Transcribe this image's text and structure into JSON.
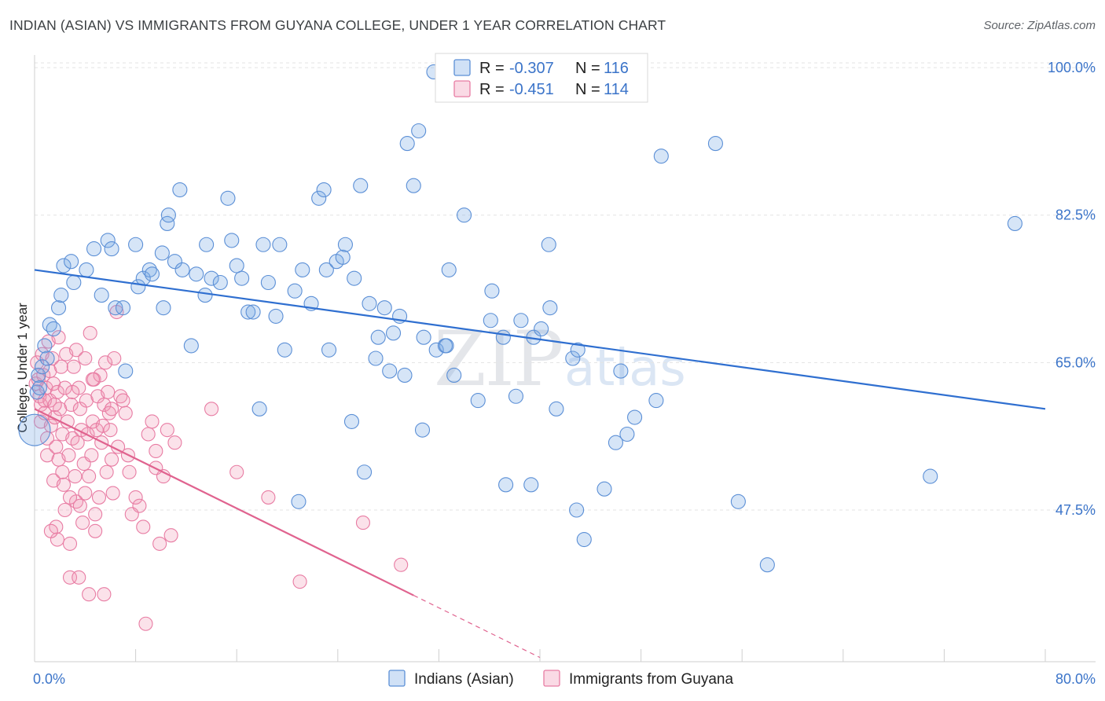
{
  "title": "INDIAN (ASIAN) VS IMMIGRANTS FROM GUYANA COLLEGE, UNDER 1 YEAR CORRELATION CHART",
  "source": "Source: ZipAtlas.com",
  "watermark": {
    "zip": "ZIP",
    "atlas": "atlas"
  },
  "colors": {
    "blue_fill": "rgba(120,168,228,0.30)",
    "blue_stroke": "#5b8fd6",
    "blue_line": "#2f6fd0",
    "pink_fill": "rgba(240,150,180,0.28)",
    "pink_stroke": "#e87ca3",
    "pink_line": "#e0638f",
    "axis_label": "#3b74c9",
    "grid": "#e3e3e3"
  },
  "legend": {
    "r_label": "R = ",
    "n_label": "N = ",
    "rows": [
      {
        "r": "-0.307",
        "n": "116",
        "series": "blue"
      },
      {
        "r": "-0.451",
        "n": "114",
        "series": "pink"
      }
    ]
  },
  "chart_data": {
    "type": "scatter",
    "title": "INDIAN (ASIAN) VS IMMIGRANTS FROM GUYANA COLLEGE, UNDER 1 YEAR CORRELATION CHART",
    "xlabel": "",
    "ylabel": "College, Under 1 year",
    "xlim": [
      0,
      80
    ],
    "ylim": [
      29.5,
      101.5
    ],
    "x_tick_labels": [
      "0.0%",
      "80.0%"
    ],
    "y_ticks": [
      47.5,
      65.0,
      82.5,
      100.0
    ],
    "y_tick_labels": [
      "47.5%",
      "65.0%",
      "82.5%",
      "100.0%"
    ],
    "grid": true,
    "series": [
      {
        "name": "Indians (Asian)",
        "color": "blue",
        "trend": {
          "x": [
            0,
            80
          ],
          "y": [
            76.0,
            59.5
          ],
          "dashed_from": null
        },
        "points": [
          [
            0.2,
            61.5
          ],
          [
            0.3,
            63.5
          ],
          [
            0.4,
            62.0
          ],
          [
            0.6,
            64.5
          ],
          [
            0.8,
            67.0
          ],
          [
            1.0,
            65.5
          ],
          [
            1.2,
            69.5
          ],
          [
            1.5,
            69.0
          ],
          [
            1.9,
            71.5
          ],
          [
            2.1,
            73.0
          ],
          [
            2.3,
            76.5
          ],
          [
            2.9,
            77.0
          ],
          [
            3.1,
            74.5
          ],
          [
            4.1,
            76.0
          ],
          [
            4.7,
            78.5
          ],
          [
            5.3,
            73.0
          ],
          [
            5.8,
            79.5
          ],
          [
            6.1,
            78.5
          ],
          [
            6.4,
            71.5
          ],
          [
            7.0,
            71.5
          ],
          [
            7.2,
            64.0
          ],
          [
            8.0,
            79.0
          ],
          [
            8.2,
            74.0
          ],
          [
            8.6,
            75.0
          ],
          [
            9.1,
            76.0
          ],
          [
            9.3,
            75.5
          ],
          [
            10.1,
            78.0
          ],
          [
            10.2,
            71.5
          ],
          [
            10.5,
            81.5
          ],
          [
            10.6,
            82.5
          ],
          [
            11.1,
            77.0
          ],
          [
            11.5,
            85.5
          ],
          [
            11.7,
            76.0
          ],
          [
            12.4,
            67.0
          ],
          [
            12.8,
            75.5
          ],
          [
            13.5,
            73.0
          ],
          [
            13.6,
            79.0
          ],
          [
            14.0,
            75.0
          ],
          [
            14.7,
            74.5
          ],
          [
            15.3,
            84.5
          ],
          [
            15.6,
            79.5
          ],
          [
            16.0,
            76.5
          ],
          [
            16.4,
            75.0
          ],
          [
            16.9,
            71.0
          ],
          [
            17.3,
            71.0
          ],
          [
            17.8,
            59.5
          ],
          [
            18.1,
            79.0
          ],
          [
            18.5,
            74.5
          ],
          [
            19.1,
            70.5
          ],
          [
            19.4,
            79.0
          ],
          [
            19.8,
            66.5
          ],
          [
            20.6,
            73.5
          ],
          [
            20.9,
            48.5
          ],
          [
            21.2,
            76.0
          ],
          [
            21.9,
            72.0
          ],
          [
            22.5,
            84.5
          ],
          [
            22.9,
            85.5
          ],
          [
            23.1,
            76.0
          ],
          [
            23.3,
            66.5
          ],
          [
            23.9,
            77.0
          ],
          [
            24.4,
            77.5
          ],
          [
            24.6,
            79.0
          ],
          [
            25.1,
            58.0
          ],
          [
            25.3,
            75.0
          ],
          [
            25.8,
            86.0
          ],
          [
            26.1,
            52.0
          ],
          [
            26.5,
            72.0
          ],
          [
            27.0,
            65.5
          ],
          [
            27.2,
            68.0
          ],
          [
            27.7,
            71.5
          ],
          [
            28.1,
            64.0
          ],
          [
            28.4,
            68.5
          ],
          [
            28.9,
            70.5
          ],
          [
            29.3,
            63.5
          ],
          [
            29.5,
            91.0
          ],
          [
            30.0,
            86.0
          ],
          [
            30.4,
            92.5
          ],
          [
            30.7,
            57.0
          ],
          [
            30.8,
            68.0
          ],
          [
            31.6,
            99.5
          ],
          [
            31.8,
            66.5
          ],
          [
            32.5,
            67.0
          ],
          [
            32.6,
            67.0
          ],
          [
            32.8,
            76.0
          ],
          [
            33.2,
            63.5
          ],
          [
            34.0,
            82.5
          ],
          [
            35.1,
            60.5
          ],
          [
            36.1,
            70.0
          ],
          [
            36.2,
            73.5
          ],
          [
            37.1,
            68.0
          ],
          [
            37.3,
            50.5
          ],
          [
            38.1,
            61.0
          ],
          [
            38.5,
            70.0
          ],
          [
            39.3,
            50.5
          ],
          [
            39.5,
            68.0
          ],
          [
            40.1,
            69.0
          ],
          [
            40.7,
            79.0
          ],
          [
            40.8,
            71.5
          ],
          [
            41.3,
            59.5
          ],
          [
            42.6,
            65.5
          ],
          [
            42.9,
            47.5
          ],
          [
            43.0,
            66.5
          ],
          [
            43.5,
            44.0
          ],
          [
            45.1,
            50.0
          ],
          [
            46.0,
            55.5
          ],
          [
            46.4,
            64.0
          ],
          [
            46.9,
            56.5
          ],
          [
            47.5,
            58.5
          ],
          [
            49.2,
            60.5
          ],
          [
            49.6,
            89.5
          ],
          [
            53.9,
            91.0
          ],
          [
            55.7,
            48.5
          ],
          [
            58.0,
            41.0
          ],
          [
            70.9,
            51.5
          ],
          [
            77.6,
            81.5
          ],
          [
            0.0,
            57.0
          ]
        ]
      },
      {
        "name": "Immigrants from Guyana",
        "color": "pink",
        "trend": {
          "x": [
            0,
            40
          ],
          "y": [
            59.5,
            30.0
          ],
          "dashed_from": 30
        },
        "points": [
          [
            0.1,
            62.5
          ],
          [
            0.2,
            65.0
          ],
          [
            0.3,
            63.0
          ],
          [
            0.4,
            61.0
          ],
          [
            0.5,
            60.0
          ],
          [
            0.5,
            58.0
          ],
          [
            0.6,
            66.0
          ],
          [
            0.7,
            63.5
          ],
          [
            0.8,
            59.0
          ],
          [
            0.9,
            62.0
          ],
          [
            1.0,
            56.0
          ],
          [
            1.0,
            54.0
          ],
          [
            1.1,
            67.5
          ],
          [
            1.2,
            64.0
          ],
          [
            1.2,
            60.5
          ],
          [
            1.3,
            57.5
          ],
          [
            1.4,
            65.5
          ],
          [
            1.5,
            62.5
          ],
          [
            1.5,
            51.0
          ],
          [
            1.6,
            58.5
          ],
          [
            1.7,
            55.0
          ],
          [
            1.7,
            45.5
          ],
          [
            1.8,
            61.5
          ],
          [
            1.9,
            68.0
          ],
          [
            1.9,
            53.5
          ],
          [
            2.0,
            59.5
          ],
          [
            2.1,
            64.5
          ],
          [
            2.2,
            56.5
          ],
          [
            2.3,
            50.5
          ],
          [
            2.4,
            62.0
          ],
          [
            2.4,
            47.5
          ],
          [
            2.5,
            66.0
          ],
          [
            2.6,
            58.0
          ],
          [
            2.7,
            54.0
          ],
          [
            2.8,
            39.5
          ],
          [
            2.8,
            43.5
          ],
          [
            2.9,
            60.0
          ],
          [
            3.0,
            56.0
          ],
          [
            3.1,
            64.5
          ],
          [
            3.2,
            51.5
          ],
          [
            3.3,
            66.5
          ],
          [
            3.3,
            48.5
          ],
          [
            3.4,
            55.5
          ],
          [
            3.5,
            62.0
          ],
          [
            3.6,
            59.5
          ],
          [
            3.7,
            57.0
          ],
          [
            3.8,
            46.0
          ],
          [
            3.9,
            53.0
          ],
          [
            4.0,
            65.5
          ],
          [
            4.0,
            49.5
          ],
          [
            4.1,
            60.5
          ],
          [
            4.2,
            56.5
          ],
          [
            4.3,
            51.5
          ],
          [
            4.4,
            68.5
          ],
          [
            4.5,
            54.0
          ],
          [
            4.6,
            58.0
          ],
          [
            4.7,
            63.0
          ],
          [
            4.8,
            47.0
          ],
          [
            4.8,
            45.0
          ],
          [
            4.9,
            57.0
          ],
          [
            5.0,
            61.0
          ],
          [
            5.1,
            49.0
          ],
          [
            5.2,
            63.5
          ],
          [
            5.3,
            55.5
          ],
          [
            5.4,
            57.5
          ],
          [
            5.5,
            60.0
          ],
          [
            5.6,
            65.0
          ],
          [
            5.7,
            52.0
          ],
          [
            5.8,
            61.5
          ],
          [
            5.9,
            59.0
          ],
          [
            6.0,
            57.0
          ],
          [
            6.1,
            53.5
          ],
          [
            6.2,
            49.5
          ],
          [
            6.3,
            65.5
          ],
          [
            6.5,
            71.0
          ],
          [
            6.6,
            55.0
          ],
          [
            6.8,
            61.0
          ],
          [
            7.0,
            60.5
          ],
          [
            7.2,
            59.0
          ],
          [
            7.5,
            52.0
          ],
          [
            7.7,
            47.0
          ],
          [
            8.0,
            49.0
          ],
          [
            8.3,
            48.0
          ],
          [
            8.6,
            45.5
          ],
          [
            8.8,
            34.0
          ],
          [
            9.0,
            56.5
          ],
          [
            9.3,
            58.0
          ],
          [
            9.6,
            54.5
          ],
          [
            9.9,
            43.5
          ],
          [
            10.2,
            51.5
          ],
          [
            10.5,
            57.0
          ],
          [
            10.8,
            44.5
          ],
          [
            11.1,
            55.5
          ],
          [
            5.5,
            37.5
          ],
          [
            4.3,
            37.5
          ],
          [
            3.5,
            39.5
          ],
          [
            2.8,
            49.0
          ],
          [
            1.8,
            44.0
          ],
          [
            1.3,
            45.0
          ],
          [
            0.8,
            60.5
          ],
          [
            2.2,
            52.0
          ],
          [
            3.6,
            48.0
          ],
          [
            6.1,
            59.5
          ],
          [
            7.4,
            54.0
          ],
          [
            9.6,
            52.5
          ],
          [
            14.0,
            59.5
          ],
          [
            16.0,
            52.0
          ],
          [
            18.5,
            49.0
          ],
          [
            21.0,
            39.0
          ],
          [
            26.0,
            46.0
          ],
          [
            29.0,
            41.0
          ],
          [
            3.0,
            61.5
          ],
          [
            1.6,
            60.0
          ],
          [
            4.6,
            63.0
          ]
        ]
      }
    ]
  },
  "bottom_legend": [
    {
      "label": "Indians (Asian)",
      "series": "blue"
    },
    {
      "label": "Immigrants from Guyana",
      "series": "pink"
    }
  ]
}
